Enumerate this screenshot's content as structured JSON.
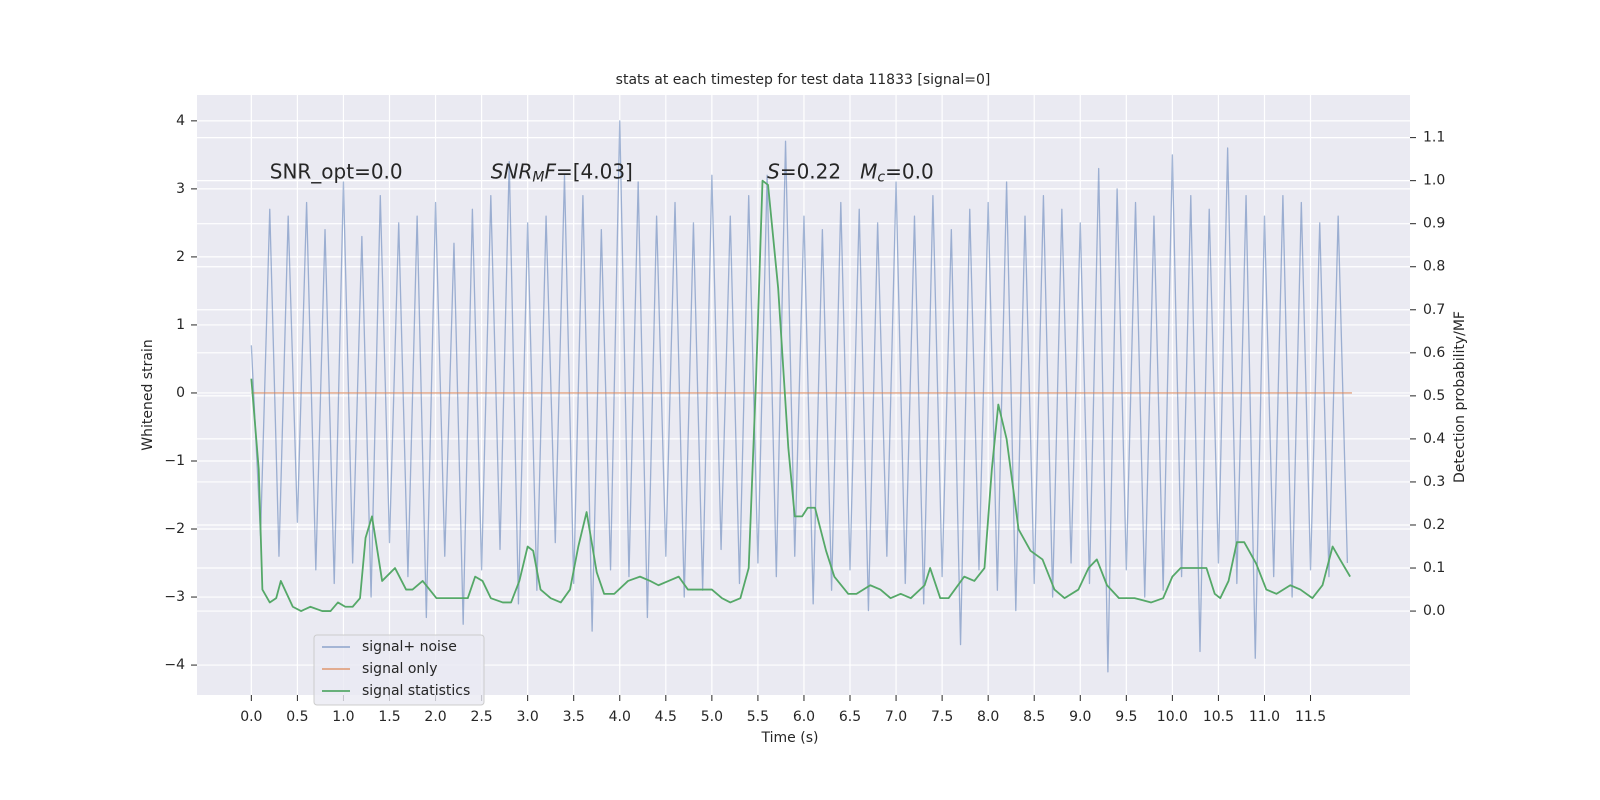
{
  "chart_data": {
    "type": "line",
    "title": "stats at each timestep for test data 11833 [signal=0]",
    "xlabel": "Time (s)",
    "ylabel": "Whitened strain",
    "y2label": "Detection probability/MF",
    "grid": true,
    "legend": "lower left",
    "xlim": [
      -0.59,
      12.58
    ],
    "ylim": [
      -4.44,
      4.38
    ],
    "y2lim": [
      -0.195,
      1.199
    ],
    "xticks": [
      {
        "value": 0,
        "label": "0.0"
      },
      {
        "value": 0.5,
        "label": "0.5"
      },
      {
        "value": 1,
        "label": "1.0"
      },
      {
        "value": 1.5,
        "label": "1.5"
      },
      {
        "value": 2,
        "label": "2.0"
      },
      {
        "value": 2.5,
        "label": "2.5"
      },
      {
        "value": 3,
        "label": "3.0"
      },
      {
        "value": 3.5,
        "label": "3.5"
      },
      {
        "value": 4,
        "label": "4.0"
      },
      {
        "value": 4.5,
        "label": "4.5"
      },
      {
        "value": 5,
        "label": "5.0"
      },
      {
        "value": 5.5,
        "label": "5.5"
      },
      {
        "value": 6,
        "label": "6.0"
      },
      {
        "value": 6.5,
        "label": "6.5"
      },
      {
        "value": 7,
        "label": "7.0"
      },
      {
        "value": 7.5,
        "label": "7.5"
      },
      {
        "value": 8,
        "label": "8.0"
      },
      {
        "value": 8.5,
        "label": "8.5"
      },
      {
        "value": 9,
        "label": "9.0"
      },
      {
        "value": 9.5,
        "label": "9.5"
      },
      {
        "value": 10,
        "label": "10.0"
      },
      {
        "value": 10.5,
        "label": "10.5"
      },
      {
        "value": 11,
        "label": "11.0"
      },
      {
        "value": 11.5,
        "label": "11.5"
      }
    ],
    "yticks": [
      {
        "value": -4,
        "label": "−4"
      },
      {
        "value": -3,
        "label": "−3"
      },
      {
        "value": -2,
        "label": "−2"
      },
      {
        "value": -1,
        "label": "−1"
      },
      0,
      1,
      2,
      3,
      4
    ],
    "y2ticks": [
      {
        "value": 0,
        "label": "0.0"
      },
      {
        "value": 0.1,
        "label": "0.1"
      },
      {
        "value": 0.2,
        "label": "0.2"
      },
      {
        "value": 0.3,
        "label": "0.3"
      },
      {
        "value": 0.4,
        "label": "0.4"
      },
      {
        "value": 0.5,
        "label": "0.5"
      },
      {
        "value": 0.6,
        "label": "0.6"
      },
      {
        "value": 0.7,
        "label": "0.7"
      },
      {
        "value": 0.8,
        "label": "0.8"
      },
      {
        "value": 0.9,
        "label": "0.9"
      },
      {
        "value": 1,
        "label": "1.0"
      },
      {
        "value": 1.1,
        "label": "1.1"
      }
    ],
    "series": [
      {
        "name": "signal+ noise",
        "color": "#4c72b0",
        "opacity": 0.5,
        "x": [
          0,
          0.1,
          0.2,
          0.3,
          0.4,
          0.5,
          0.6,
          0.7,
          0.8,
          0.9,
          1,
          1.1,
          1.2,
          1.3,
          1.4,
          1.5,
          1.6,
          1.7,
          1.8,
          1.9,
          2,
          2.1,
          2.2,
          2.3,
          2.4,
          2.5,
          2.6,
          2.7,
          2.8,
          2.9,
          3,
          3.1,
          3.2,
          3.3,
          3.4,
          3.5,
          3.6,
          3.7,
          3.8,
          3.9,
          4,
          4.1,
          4.2,
          4.3,
          4.4,
          4.5,
          4.6,
          4.7,
          4.8,
          4.9,
          5,
          5.1,
          5.2,
          5.3,
          5.4,
          5.5,
          5.6,
          5.7,
          5.8,
          5.9,
          6,
          6.1,
          6.2,
          6.3,
          6.4,
          6.5,
          6.6,
          6.7,
          6.8,
          6.9,
          7,
          7.1,
          7.2,
          7.3,
          7.4,
          7.5,
          7.6,
          7.7,
          7.8,
          7.9,
          8,
          8.1,
          8.2,
          8.3,
          8.4,
          8.5,
          8.6,
          8.7,
          8.8,
          8.9,
          9,
          9.1,
          9.2,
          9.3,
          9.4,
          9.5,
          9.6,
          9.7,
          9.8,
          9.9,
          10,
          10.1,
          10.2,
          10.3,
          10.4,
          10.5,
          10.6,
          10.7,
          10.8,
          10.9,
          11,
          11.1,
          11.2,
          11.3,
          11.4,
          11.5,
          11.6,
          11.7,
          11.8,
          11.9
        ],
        "values": [
          0.7,
          -2.1,
          2.7,
          -2.4,
          2.6,
          -1.9,
          2.8,
          -2.6,
          2.4,
          -2.8,
          3.1,
          -2.5,
          2.3,
          -3.0,
          2.9,
          -2.2,
          2.5,
          -2.7,
          2.6,
          -3.3,
          2.8,
          -2.4,
          2.2,
          -3.4,
          2.7,
          -2.6,
          2.9,
          -2.3,
          3.4,
          -3.1,
          2.5,
          -2.9,
          2.6,
          -2.2,
          3.2,
          -2.8,
          2.9,
          -3.5,
          2.4,
          -2.6,
          4.0,
          -2.7,
          3.1,
          -3.3,
          2.6,
          -2.4,
          2.8,
          -3.0,
          2.5,
          -2.9,
          3.2,
          -2.3,
          2.6,
          -2.8,
          2.9,
          -2.5,
          3.2,
          -2.7,
          3.7,
          -2.4,
          2.6,
          -3.1,
          2.4,
          -2.9,
          2.8,
          -2.6,
          2.7,
          -3.2,
          2.5,
          -2.4,
          3.1,
          -2.8,
          2.6,
          -3.1,
          2.9,
          -2.7,
          2.4,
          -3.7,
          2.7,
          -2.6,
          2.8,
          -2.9,
          3.1,
          -3.2,
          2.6,
          -2.8,
          2.9,
          -3.0,
          2.7,
          -2.5,
          2.5,
          -2.8,
          3.3,
          -4.1,
          3.0,
          -2.6,
          2.8,
          -3.0,
          2.6,
          -2.9,
          3.5,
          -2.7,
          2.9,
          -3.8,
          2.7,
          -2.5,
          3.6,
          -2.8,
          2.9,
          -3.9,
          2.6,
          -2.7,
          2.9,
          -3.0,
          2.8,
          -2.6,
          2.5,
          -2.7,
          2.6,
          -2.5
        ]
      },
      {
        "name": "signal only",
        "color": "#dd8452",
        "opacity": 0.7,
        "x": [
          0,
          11.95
        ],
        "values": [
          0,
          0
        ]
      },
      {
        "name": "signal statistics",
        "color": "#55a868",
        "axis": "y2",
        "x": [
          0,
          0.08,
          0.12,
          0.2,
          0.27,
          0.32,
          0.45,
          0.54,
          0.64,
          0.77,
          0.86,
          0.94,
          1.02,
          1.1,
          1.18,
          1.24,
          1.31,
          1.42,
          1.56,
          1.68,
          1.75,
          1.86,
          2.01,
          2.13,
          2.25,
          2.35,
          2.43,
          2.51,
          2.6,
          2.73,
          2.82,
          2.91,
          3.0,
          3.06,
          3.14,
          3.25,
          3.36,
          3.46,
          3.55,
          3.64,
          3.75,
          3.83,
          3.94,
          4.09,
          4.22,
          4.33,
          4.42,
          4.53,
          4.64,
          4.74,
          4.87,
          5.0,
          5.11,
          5.2,
          5.31,
          5.4,
          5.48,
          5.55,
          5.61,
          5.72,
          5.83,
          5.9,
          5.98,
          6.04,
          6.12,
          6.24,
          6.33,
          6.48,
          6.57,
          6.72,
          6.83,
          6.94,
          7.05,
          7.16,
          7.31,
          7.37,
          7.48,
          7.57,
          7.74,
          7.85,
          7.96,
          8.04,
          8.11,
          8.2,
          8.33,
          8.46,
          8.59,
          8.72,
          8.83,
          8.98,
          9.09,
          9.18,
          9.29,
          9.42,
          9.59,
          9.77,
          9.9,
          10.0,
          10.09,
          10.26,
          10.37,
          10.46,
          10.52,
          10.61,
          10.7,
          10.78,
          10.91,
          11.02,
          11.13,
          11.28,
          11.39,
          11.52,
          11.63,
          11.74,
          11.82,
          11.93
        ],
        "values": [
          0.54,
          0.33,
          0.05,
          0.02,
          0.03,
          0.07,
          0.01,
          0.0,
          0.01,
          0.0,
          0.0,
          0.02,
          0.01,
          0.01,
          0.03,
          0.17,
          0.22,
          0.07,
          0.1,
          0.05,
          0.05,
          0.07,
          0.03,
          0.03,
          0.03,
          0.03,
          0.08,
          0.07,
          0.03,
          0.02,
          0.02,
          0.07,
          0.15,
          0.14,
          0.05,
          0.03,
          0.02,
          0.05,
          0.15,
          0.23,
          0.09,
          0.04,
          0.04,
          0.07,
          0.08,
          0.07,
          0.06,
          0.07,
          0.08,
          0.05,
          0.05,
          0.05,
          0.03,
          0.02,
          0.03,
          0.1,
          0.54,
          1.0,
          0.99,
          0.75,
          0.38,
          0.22,
          0.22,
          0.24,
          0.24,
          0.14,
          0.08,
          0.04,
          0.04,
          0.06,
          0.05,
          0.03,
          0.04,
          0.03,
          0.06,
          0.1,
          0.03,
          0.03,
          0.08,
          0.07,
          0.1,
          0.33,
          0.48,
          0.4,
          0.19,
          0.14,
          0.12,
          0.05,
          0.03,
          0.05,
          0.1,
          0.12,
          0.06,
          0.03,
          0.03,
          0.02,
          0.03,
          0.08,
          0.1,
          0.1,
          0.1,
          0.04,
          0.03,
          0.07,
          0.16,
          0.16,
          0.11,
          0.05,
          0.04,
          0.06,
          0.05,
          0.03,
          0.06,
          0.15,
          0.12,
          0.08
        ]
      }
    ],
    "annotations": [
      {
        "x": 0.2,
        "y": 3.24,
        "parts": [
          {
            "text": "SNR_opt=0.0"
          }
        ]
      },
      {
        "x": 2.6,
        "y": 3.24,
        "parts": [
          {
            "text": "SNR",
            "style": "italic"
          },
          {
            "text": "M",
            "style": "italic-sub"
          },
          {
            "text": "F",
            "style": "italic"
          },
          {
            "text": "=[4.03]"
          }
        ]
      },
      {
        "x": 5.6,
        "y": 3.24,
        "parts": [
          {
            "text": "S",
            "style": "italic"
          },
          {
            "text": "=0.22"
          }
        ]
      },
      {
        "x": 6.61,
        "y": 3.24,
        "parts": [
          {
            "text": "M",
            "style": "italic"
          },
          {
            "text": "c",
            "style": "italic-sub"
          },
          {
            "text": "=0.0"
          }
        ]
      }
    ]
  }
}
